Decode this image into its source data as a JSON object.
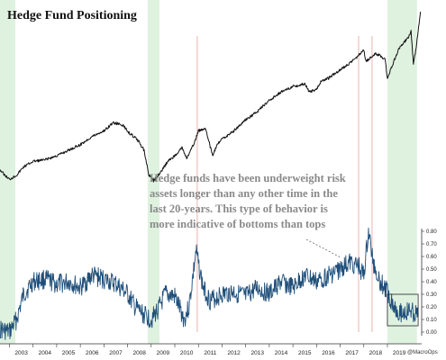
{
  "chart_data": {
    "type": "line",
    "title": "Hedge Fund Positioning",
    "annotation_lines": [
      "Hedge funds have been underweight risk",
      "assets longer than any other time in the",
      "last 20-years. This type of behavior is",
      "more indicative of bottoms than tops"
    ],
    "credit": "@MacroOps",
    "x_tick_labels": [
      "2003",
      "2004",
      "2005",
      "2006",
      "2007",
      "2008",
      "2009",
      "2010",
      "2011",
      "2012",
      "2013",
      "2014",
      "2015",
      "2016",
      "2017",
      "2018",
      "2019"
    ],
    "xlim": [
      2002.6,
      2020.45
    ],
    "y_right": {
      "ylim": [
        0.0,
        0.8
      ],
      "tick_labels": [
        "0.00",
        "0.10",
        "0.20",
        "0.30",
        "0.40",
        "0.50",
        "0.60",
        "0.70",
        "0.80"
      ]
    },
    "series": [
      {
        "role": "equity-index",
        "color": "#111111",
        "x": [
          2002.6,
          2002.8,
          2003.0,
          2003.3,
          2003.6,
          2004.0,
          2004.5,
          2005.0,
          2005.5,
          2006.0,
          2006.5,
          2007.0,
          2007.4,
          2007.8,
          2008.1,
          2008.4,
          2008.7,
          2008.9,
          2009.1,
          2009.4,
          2009.7,
          2010.0,
          2010.3,
          2010.5,
          2010.8,
          2011.0,
          2011.3,
          2011.6,
          2011.8,
          2012.0,
          2012.5,
          2013.0,
          2013.5,
          2014.0,
          2014.5,
          2015.0,
          2015.5,
          2015.7,
          2016.0,
          2016.2,
          2016.5,
          2017.0,
          2017.5,
          2018.0,
          2018.1,
          2018.5,
          2018.9,
          2019.0,
          2019.5,
          2019.9,
          2020.0,
          2020.1,
          2020.2,
          2020.4
        ],
        "y": [
          17,
          15,
          13.5,
          15,
          18,
          20,
          20.5,
          22,
          24,
          26,
          29,
          31,
          34,
          33,
          30,
          28,
          24,
          15,
          13,
          16,
          20,
          22,
          25,
          21,
          26,
          31,
          32,
          22,
          26,
          28,
          31,
          35,
          38,
          42,
          45,
          47,
          48,
          45,
          46,
          49,
          50,
          53,
          56,
          60,
          56,
          59,
          57,
          50,
          61,
          65,
          67,
          55,
          60,
          74
        ]
      },
      {
        "role": "hedge-fund-positioning",
        "color": "#1f4e79",
        "x": [
          2002.6,
          2003.0,
          2003.3,
          2003.6,
          2004.0,
          2004.5,
          2005.0,
          2005.5,
          2006.0,
          2006.5,
          2007.0,
          2007.5,
          2008.0,
          2008.3,
          2008.6,
          2009.0,
          2009.3,
          2009.6,
          2010.0,
          2010.4,
          2010.6,
          2010.9,
          2011.2,
          2011.5,
          2012.0,
          2012.5,
          2013.0,
          2013.5,
          2014.0,
          2014.5,
          2015.0,
          2015.5,
          2016.0,
          2016.5,
          2017.0,
          2017.4,
          2017.8,
          2018.0,
          2018.2,
          2018.4,
          2018.7,
          2019.0,
          2019.3,
          2019.6,
          2020.0,
          2020.3
        ],
        "y": [
          0.02,
          0.0,
          0.1,
          0.3,
          0.4,
          0.42,
          0.38,
          0.4,
          0.35,
          0.45,
          0.42,
          0.38,
          0.3,
          0.2,
          0.15,
          0.1,
          0.18,
          0.3,
          0.28,
          0.1,
          0.2,
          0.64,
          0.35,
          0.25,
          0.3,
          0.32,
          0.28,
          0.35,
          0.3,
          0.4,
          0.35,
          0.45,
          0.4,
          0.45,
          0.5,
          0.55,
          0.52,
          0.45,
          0.8,
          0.55,
          0.4,
          0.32,
          0.2,
          0.15,
          0.17,
          0.12
        ]
      }
    ],
    "shaded_periods": [
      [
        2002.6,
        2003.25
      ],
      [
        2008.85,
        2009.35
      ],
      [
        2019.0,
        2020.25
      ]
    ],
    "shade_color": "#dff2e0",
    "marker_lines": [
      2010.95,
      2017.78,
      2018.35
    ],
    "marker_line_color": "#e8a0a0",
    "highlight_box": [
      2019.0,
      2020.3,
      0.05,
      0.3
    ]
  }
}
